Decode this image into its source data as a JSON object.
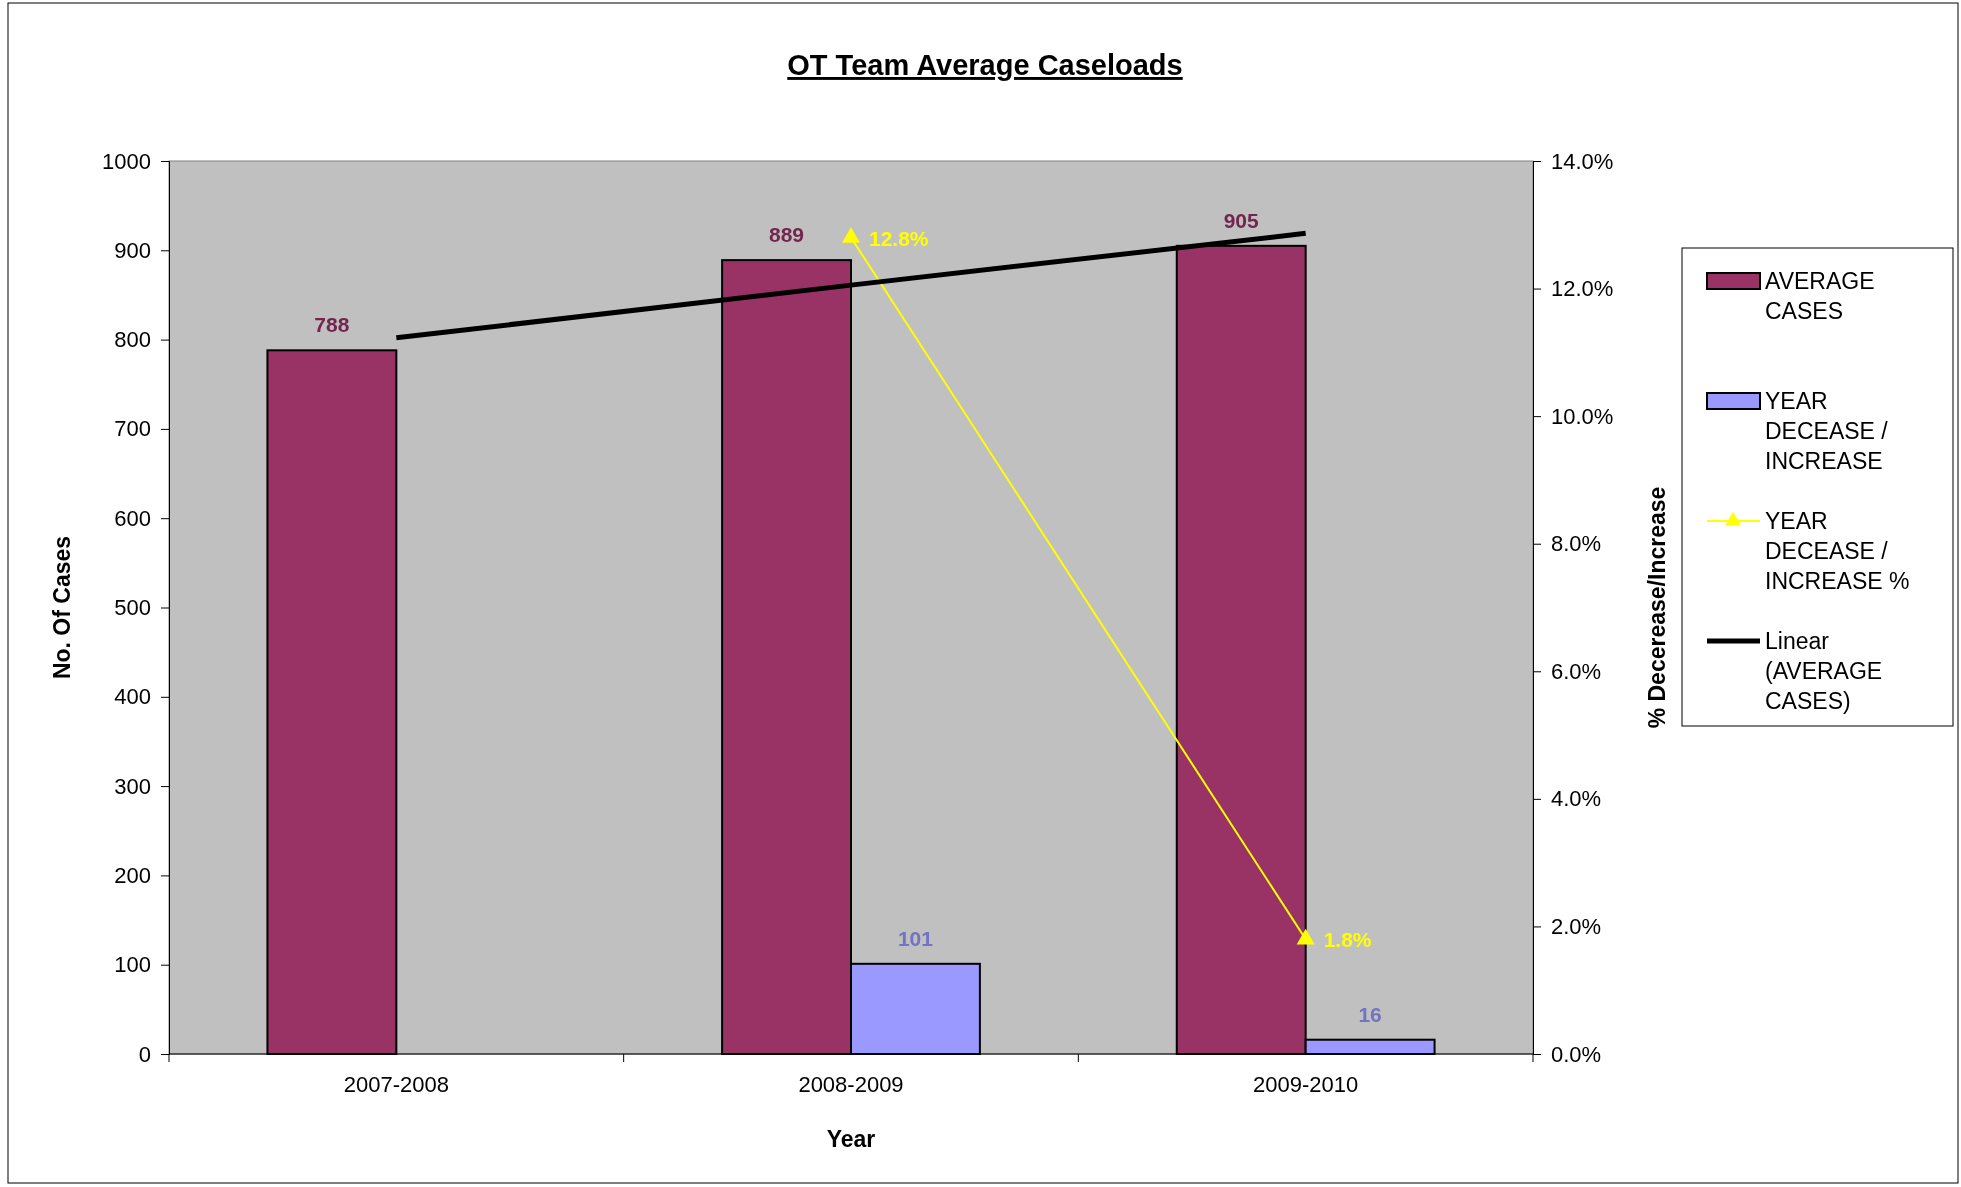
{
  "chart_data": {
    "type": "bar",
    "title": "OT Team Average Caseloads",
    "xlabel": "Year",
    "ylabel": "No. Of Cases",
    "y2label": "% Decerease/Increase",
    "categories": [
      "2007-2008",
      "2008-2009",
      "2009-2010"
    ],
    "ylim": [
      0,
      1000
    ],
    "yticks": [
      0,
      100,
      200,
      300,
      400,
      500,
      600,
      700,
      800,
      900,
      1000
    ],
    "y2lim": [
      0,
      14
    ],
    "y2ticks": [
      {
        "value": 0,
        "label": "0.0%"
      },
      {
        "value": 2,
        "label": "2.0%"
      },
      {
        "value": 4,
        "label": "4.0%"
      },
      {
        "value": 6,
        "label": "6.0%"
      },
      {
        "value": 8,
        "label": "8.0%"
      },
      {
        "value": 10,
        "label": "10.0%"
      },
      {
        "value": 12,
        "label": "12.0%"
      },
      {
        "value": 14,
        "label": "14.0%"
      }
    ],
    "grid": false,
    "legend": "right",
    "series": [
      {
        "name": "AVERAGE CASES",
        "color": "#993366",
        "values": [
          788,
          889,
          905
        ],
        "value_labels": [
          "788",
          "889",
          "905"
        ]
      },
      {
        "name": "YEAR DECEASE / INCREASE",
        "color": "#9999ff",
        "values": [
          null,
          101,
          16
        ],
        "value_labels": [
          null,
          "101",
          "16"
        ]
      },
      {
        "name": "YEAR DECEASE / INCREASE %",
        "type": "line",
        "axis": "y2",
        "color": "#ffff00",
        "marker": "triangle",
        "values": [
          null,
          12.8,
          1.8
        ],
        "value_labels": [
          null,
          "12.8%",
          "1.8%"
        ]
      },
      {
        "name": "Linear (AVERAGE CASES)",
        "type": "line",
        "color": "#000000",
        "marker": "none",
        "values": [
          802,
          861,
          919
        ]
      }
    ]
  }
}
